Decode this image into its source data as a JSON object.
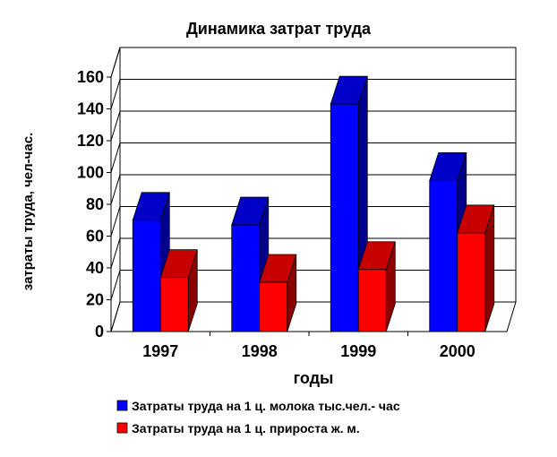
{
  "chart_data": {
    "type": "bar",
    "title": "Динамика затрат труда",
    "xlabel": "годы",
    "ylabel": "затраты труда, чел-час.",
    "categories": [
      "1997",
      "1998",
      "1999",
      "2000"
    ],
    "ylim": [
      0,
      160
    ],
    "yticks": [
      0,
      20,
      40,
      60,
      80,
      100,
      120,
      140,
      160
    ],
    "grid": true,
    "legend_position": "bottom",
    "series": [
      {
        "name": "Затраты труда на 1 ц. молока тыс.чел.- час",
        "values": [
          70,
          67,
          143,
          95
        ],
        "color": "#0000ff"
      },
      {
        "name": "Затраты труда на 1 ц. прироста ж. м.",
        "values": [
          34,
          31,
          39,
          62
        ],
        "color": "#ff0000"
      }
    ]
  }
}
